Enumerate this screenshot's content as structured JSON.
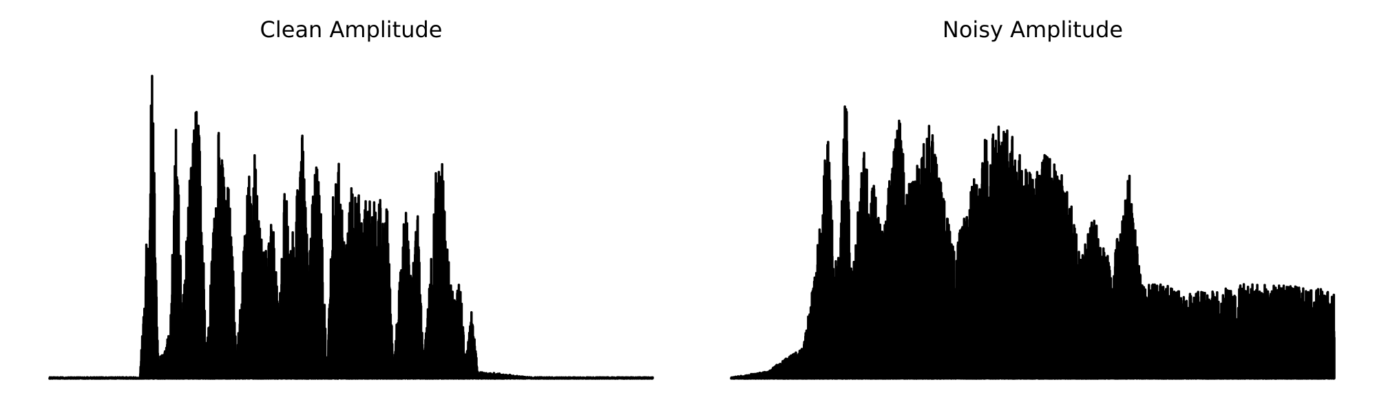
{
  "chart_data": [
    {
      "type": "line",
      "title": "Clean Amplitude",
      "xlabel": "",
      "ylabel": "",
      "axes_visible": false,
      "grid": false,
      "ylim": [
        0,
        1.0
      ],
      "color": "#000000",
      "envelope": [
        {
          "t": 0.0,
          "a": 0.0
        },
        {
          "t": 0.15,
          "a": 0.0
        },
        {
          "t": 0.16,
          "a": 0.4
        },
        {
          "t": 0.17,
          "a": 1.0
        },
        {
          "t": 0.18,
          "a": 0.05
        },
        {
          "t": 0.2,
          "a": 0.15
        },
        {
          "t": 0.21,
          "a": 0.87
        },
        {
          "t": 0.22,
          "a": 0.2
        },
        {
          "t": 0.24,
          "a": 0.9
        },
        {
          "t": 0.25,
          "a": 0.78
        },
        {
          "t": 0.26,
          "a": 0.05
        },
        {
          "t": 0.28,
          "a": 0.8
        },
        {
          "t": 0.29,
          "a": 0.68
        },
        {
          "t": 0.3,
          "a": 0.58
        },
        {
          "t": 0.31,
          "a": 0.05
        },
        {
          "t": 0.33,
          "a": 0.66
        },
        {
          "t": 0.34,
          "a": 0.72
        },
        {
          "t": 0.35,
          "a": 0.48
        },
        {
          "t": 0.36,
          "a": 0.4
        },
        {
          "t": 0.37,
          "a": 0.52
        },
        {
          "t": 0.38,
          "a": 0.2
        },
        {
          "t": 0.39,
          "a": 0.64
        },
        {
          "t": 0.4,
          "a": 0.42
        },
        {
          "t": 0.42,
          "a": 0.8
        },
        {
          "t": 0.43,
          "a": 0.35
        },
        {
          "t": 0.44,
          "a": 0.8
        },
        {
          "t": 0.45,
          "a": 0.55
        },
        {
          "t": 0.46,
          "a": 0.02
        },
        {
          "t": 0.47,
          "a": 0.6
        },
        {
          "t": 0.48,
          "a": 0.7
        },
        {
          "t": 0.49,
          "a": 0.4
        },
        {
          "t": 0.5,
          "a": 0.62
        },
        {
          "t": 0.52,
          "a": 0.58
        },
        {
          "t": 0.54,
          "a": 0.6
        },
        {
          "t": 0.56,
          "a": 0.55
        },
        {
          "t": 0.57,
          "a": 0.02
        },
        {
          "t": 0.59,
          "a": 0.57
        },
        {
          "t": 0.6,
          "a": 0.3
        },
        {
          "t": 0.61,
          "a": 0.54
        },
        {
          "t": 0.62,
          "a": 0.05
        },
        {
          "t": 0.63,
          "a": 0.3
        },
        {
          "t": 0.64,
          "a": 0.65
        },
        {
          "t": 0.65,
          "a": 0.72
        },
        {
          "t": 0.66,
          "a": 0.4
        },
        {
          "t": 0.67,
          "a": 0.25
        },
        {
          "t": 0.68,
          "a": 0.33
        },
        {
          "t": 0.69,
          "a": 0.05
        },
        {
          "t": 0.7,
          "a": 0.24
        },
        {
          "t": 0.71,
          "a": 0.02
        },
        {
          "t": 0.8,
          "a": 0.0
        },
        {
          "t": 1.0,
          "a": 0.0
        }
      ]
    },
    {
      "type": "line",
      "title": "Noisy Amplitude",
      "xlabel": "",
      "ylabel": "",
      "axes_visible": false,
      "grid": false,
      "ylim": [
        0,
        1.0
      ],
      "color": "#000000",
      "envelope": [
        {
          "t": 0.0,
          "a": 0.0
        },
        {
          "t": 0.06,
          "a": 0.02
        },
        {
          "t": 0.09,
          "a": 0.06
        },
        {
          "t": 0.12,
          "a": 0.1
        },
        {
          "t": 0.14,
          "a": 0.35
        },
        {
          "t": 0.16,
          "a": 0.8
        },
        {
          "t": 0.17,
          "a": 0.4
        },
        {
          "t": 0.18,
          "a": 0.4
        },
        {
          "t": 0.19,
          "a": 0.96
        },
        {
          "t": 0.2,
          "a": 0.3
        },
        {
          "t": 0.22,
          "a": 0.76
        },
        {
          "t": 0.23,
          "a": 0.68
        },
        {
          "t": 0.25,
          "a": 0.48
        },
        {
          "t": 0.28,
          "a": 0.86
        },
        {
          "t": 0.29,
          "a": 0.6
        },
        {
          "t": 0.31,
          "a": 0.7
        },
        {
          "t": 0.33,
          "a": 0.82
        },
        {
          "t": 0.35,
          "a": 0.6
        },
        {
          "t": 0.37,
          "a": 0.4
        },
        {
          "t": 0.4,
          "a": 0.62
        },
        {
          "t": 0.42,
          "a": 0.76
        },
        {
          "t": 0.43,
          "a": 0.78
        },
        {
          "t": 0.45,
          "a": 0.82
        },
        {
          "t": 0.47,
          "a": 0.76
        },
        {
          "t": 0.5,
          "a": 0.64
        },
        {
          "t": 0.52,
          "a": 0.72
        },
        {
          "t": 0.54,
          "a": 0.68
        },
        {
          "t": 0.56,
          "a": 0.6
        },
        {
          "t": 0.58,
          "a": 0.38
        },
        {
          "t": 0.6,
          "a": 0.52
        },
        {
          "t": 0.63,
          "a": 0.36
        },
        {
          "t": 0.66,
          "a": 0.66
        },
        {
          "t": 0.68,
          "a": 0.3
        },
        {
          "t": 0.72,
          "a": 0.3
        },
        {
          "t": 0.76,
          "a": 0.27
        },
        {
          "t": 0.8,
          "a": 0.28
        },
        {
          "t": 0.85,
          "a": 0.3
        },
        {
          "t": 0.9,
          "a": 0.3
        },
        {
          "t": 0.95,
          "a": 0.3
        },
        {
          "t": 1.0,
          "a": 0.27
        }
      ]
    }
  ]
}
